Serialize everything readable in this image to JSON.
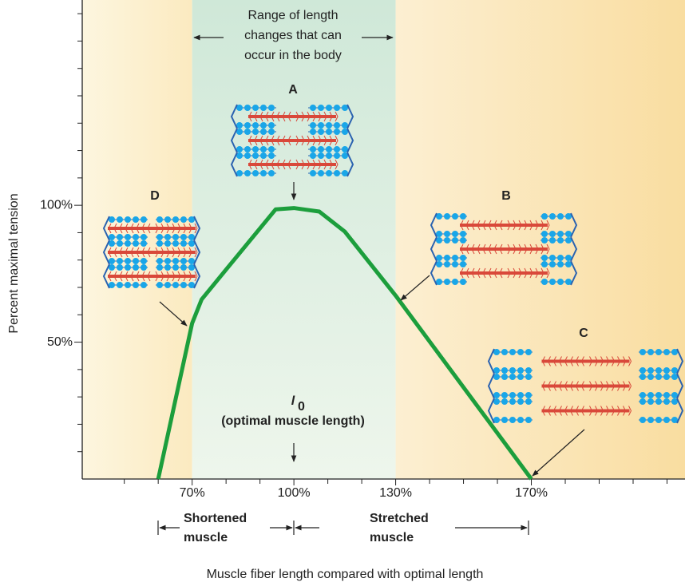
{
  "chart_data": {
    "type": "line",
    "x_label": "Muscle fiber length compared with optimal length",
    "y_label": "Percent maximal tension",
    "x": [
      60,
      70,
      72.8,
      80,
      94.6,
      100,
      107.5,
      115,
      130,
      170
    ],
    "series": [
      {
        "color": "#1c9e3c",
        "values": [
          0,
          56.9,
          65.6,
          76.5,
          98.5,
          99,
          97.7,
          90.4,
          67,
          0
        ]
      }
    ],
    "xlim": [
      37.6,
      215.3
    ],
    "ylim": [
      0,
      175
    ],
    "xticks": [
      {
        "value": 70,
        "label": "70%"
      },
      {
        "value": 100,
        "label": "100%"
      },
      {
        "value": 130,
        "label": "130%"
      },
      {
        "value": 170,
        "label": "170%"
      }
    ],
    "x_minor_ticks": [
      50,
      60,
      80,
      90,
      110,
      120,
      140,
      150,
      160,
      180,
      190,
      200,
      210
    ],
    "yticks": [
      {
        "value": 50,
        "label": "50%"
      },
      {
        "value": 100,
        "label": "100%"
      }
    ],
    "y_minor_ticks": [
      10,
      20,
      30,
      40,
      60,
      70,
      80,
      90,
      110,
      120,
      130,
      140,
      150,
      160,
      170
    ],
    "highlight_range": [
      70,
      130
    ],
    "annotations": {
      "range": [
        "Range of length",
        "changes that can",
        "occur in the body"
      ],
      "A": "A",
      "B": "B",
      "C": "C",
      "D": "D",
      "optimal_symbol": "l",
      "optimal_subscript": "0",
      "optimal_text": "(optimal muscle length)",
      "shortened": [
        "Shortened",
        "muscle"
      ],
      "stretched": [
        "Stretched",
        "muscle"
      ]
    }
  }
}
